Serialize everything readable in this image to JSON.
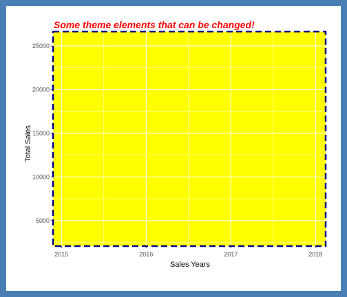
{
  "chart_data": {
    "type": "line",
    "title": "Some theme elements that can be changed!",
    "xlabel": "Sales Years",
    "ylabel": "Total Sales",
    "x_ticks": [
      2015,
      2016,
      2017,
      2018
    ],
    "y_ticks": [
      5000,
      10000,
      15000,
      20000,
      25000
    ],
    "xlim": [
      2014.9,
      2018.12
    ],
    "ylim": [
      2080,
      26650
    ],
    "series": [],
    "grid": true,
    "legend": "none"
  },
  "colors": {
    "frame": "#4a7fb5",
    "panel_background": "#ffff00",
    "panel_border": "#00008b",
    "grid": "#ffffff",
    "title": "#ff0000",
    "tick": "#4d4d4d"
  }
}
